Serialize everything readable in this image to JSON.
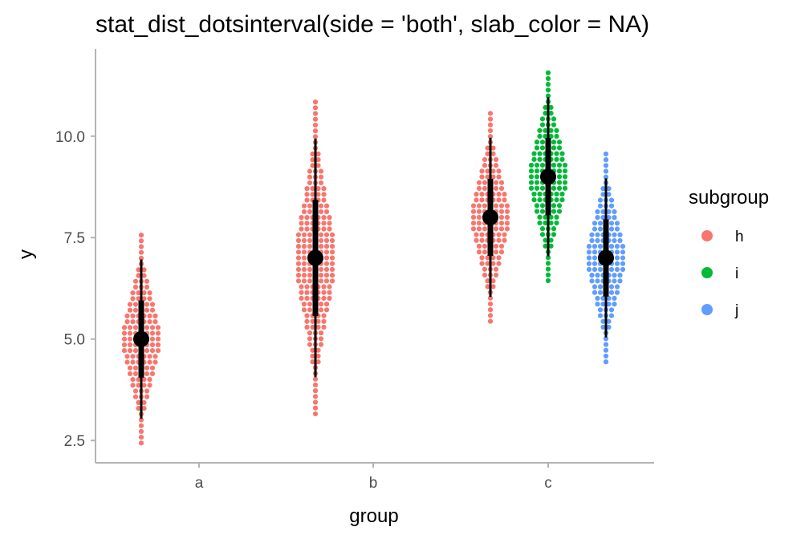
{
  "chart_data": {
    "type": "dotsinterval",
    "title": "stat_dist_dotsinterval(side = 'both', slab_color = NA)",
    "xlabel": "group",
    "ylabel": "y",
    "categories": [
      "a",
      "b",
      "c"
    ],
    "ylim": [
      1.95,
      12.15
    ],
    "yticks": [
      2.5,
      5.0,
      7.5,
      10.0
    ],
    "ytick_labels": [
      "2.5",
      "5.0",
      "7.5",
      "10.0"
    ],
    "grid": false,
    "legend": {
      "title": "subgroup",
      "position": "right",
      "items": [
        {
          "label": "h",
          "color": "#f8766d"
        },
        {
          "label": "i",
          "color": "#00ba38"
        },
        {
          "label": "j",
          "color": "#619cff"
        }
      ]
    },
    "series": [
      {
        "group": "a",
        "subgroup": "h",
        "color": "#f8766d",
        "dist": "normal",
        "mean": 5,
        "sd": 1,
        "median": 5,
        "interval_66": [
          4.05,
          5.95
        ],
        "interval_95": [
          3.04,
          6.96
        ],
        "range": [
          2.4,
          7.6
        ]
      },
      {
        "group": "b",
        "subgroup": "h",
        "color": "#f8766d",
        "dist": "normal",
        "mean": 7,
        "sd": 1.5,
        "median": 7,
        "interval_66": [
          5.57,
          8.43
        ],
        "interval_95": [
          4.06,
          9.94
        ],
        "range": [
          3.1,
          10.9
        ]
      },
      {
        "group": "c",
        "subgroup": "h",
        "color": "#f8766d",
        "dist": "normal",
        "mean": 8,
        "sd": 1,
        "median": 8,
        "interval_66": [
          7.05,
          8.95
        ],
        "interval_95": [
          6.04,
          9.96
        ],
        "range": [
          5.4,
          10.6
        ]
      },
      {
        "group": "c",
        "subgroup": "i",
        "color": "#00ba38",
        "dist": "normal",
        "mean": 9,
        "sd": 1,
        "median": 9,
        "interval_66": [
          8.05,
          9.95
        ],
        "interval_95": [
          7.04,
          10.96
        ],
        "range": [
          6.4,
          11.6
        ]
      },
      {
        "group": "c",
        "subgroup": "j",
        "color": "#619cff",
        "dist": "normal",
        "mean": 7,
        "sd": 1,
        "median": 7,
        "interval_66": [
          6.05,
          7.95
        ],
        "interval_95": [
          5.04,
          8.96
        ],
        "range": [
          4.4,
          9.6
        ]
      }
    ]
  }
}
